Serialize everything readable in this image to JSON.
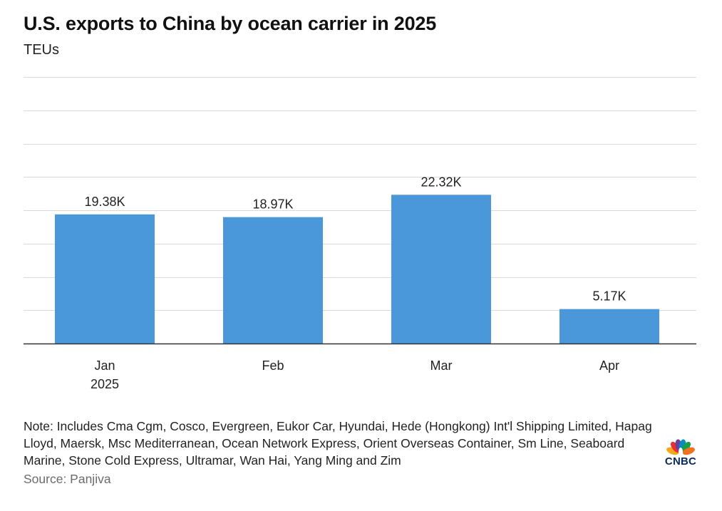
{
  "chart_data": {
    "type": "bar",
    "title": "U.S. exports to China by ocean carrier in 2025",
    "subtitle": "TEUs",
    "categories": [
      "Jan",
      "Feb",
      "Mar",
      "Apr"
    ],
    "category_sublabels": [
      "2025",
      "",
      "",
      ""
    ],
    "values": [
      19380,
      18970,
      22320,
      5170
    ],
    "data_labels": [
      "19.38K",
      "18.97K",
      "22.32K",
      "5.17K"
    ],
    "ylim": [
      0,
      40000
    ],
    "gridlines": true,
    "bar_color": "#4a98d9",
    "xlabel": "",
    "ylabel": ""
  },
  "note": "Note: Includes Cma Cgm, Cosco, Evergreen, Eukor Car, Hyundai, Hede (Hongkong) Int'l Shipping Limited, Hapag Lloyd, Maersk, Msc Mediterranean, Ocean Network Express, Orient Overseas Container, Sm Line, Seaboard Marine, Stone Cold Express, Ultramar, Wan Hai, Yang Ming and Zim",
  "source": "Source: Panjiva",
  "logo": {
    "text": "CNBC",
    "icon": "peacock-icon",
    "colors": [
      "#f6a81c",
      "#e8312f",
      "#6a3f99",
      "#0a89c9",
      "#15a04a",
      "#f37021"
    ]
  }
}
